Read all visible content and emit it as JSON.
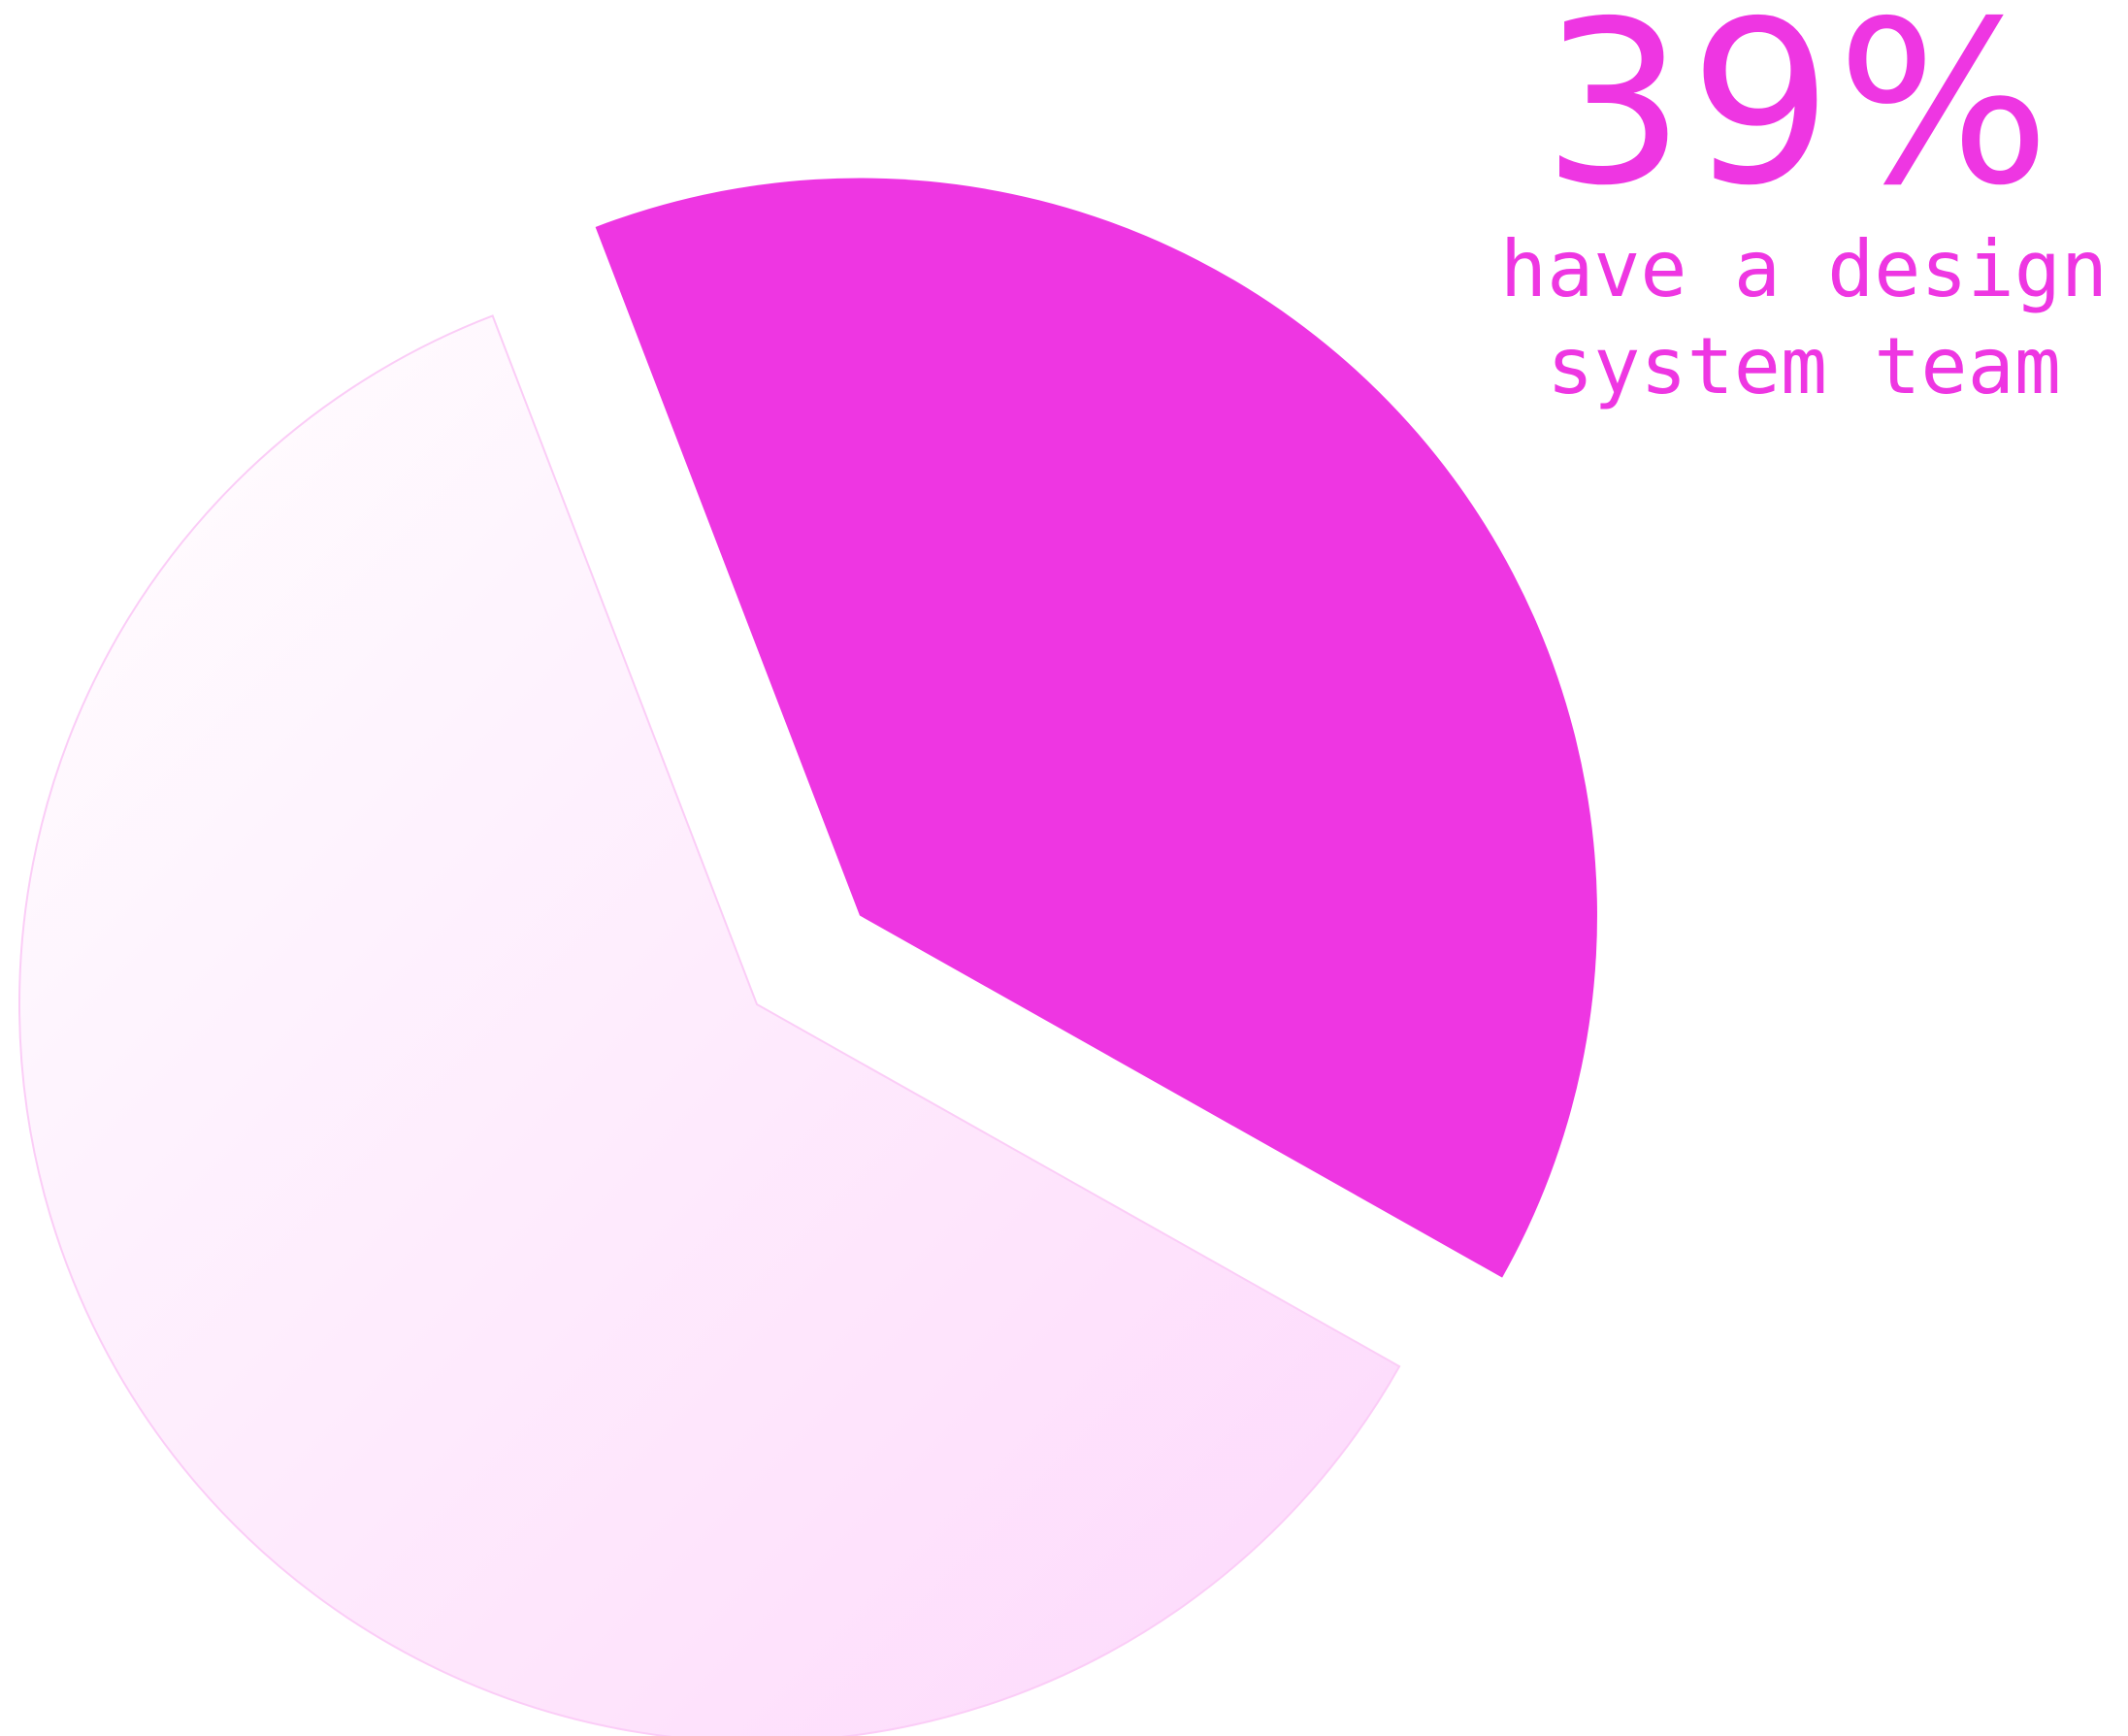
{
  "chart_data": {
    "type": "pie",
    "slices": [
      {
        "value": 39,
        "color": "#ee36e2",
        "fill": "solid",
        "exploded": true
      },
      {
        "value": 61,
        "color": "#fdd8fb",
        "fill": "gradient",
        "exploded": false
      }
    ],
    "annotations": {
      "value_text": "39%",
      "label_text": "have a design system team"
    }
  }
}
